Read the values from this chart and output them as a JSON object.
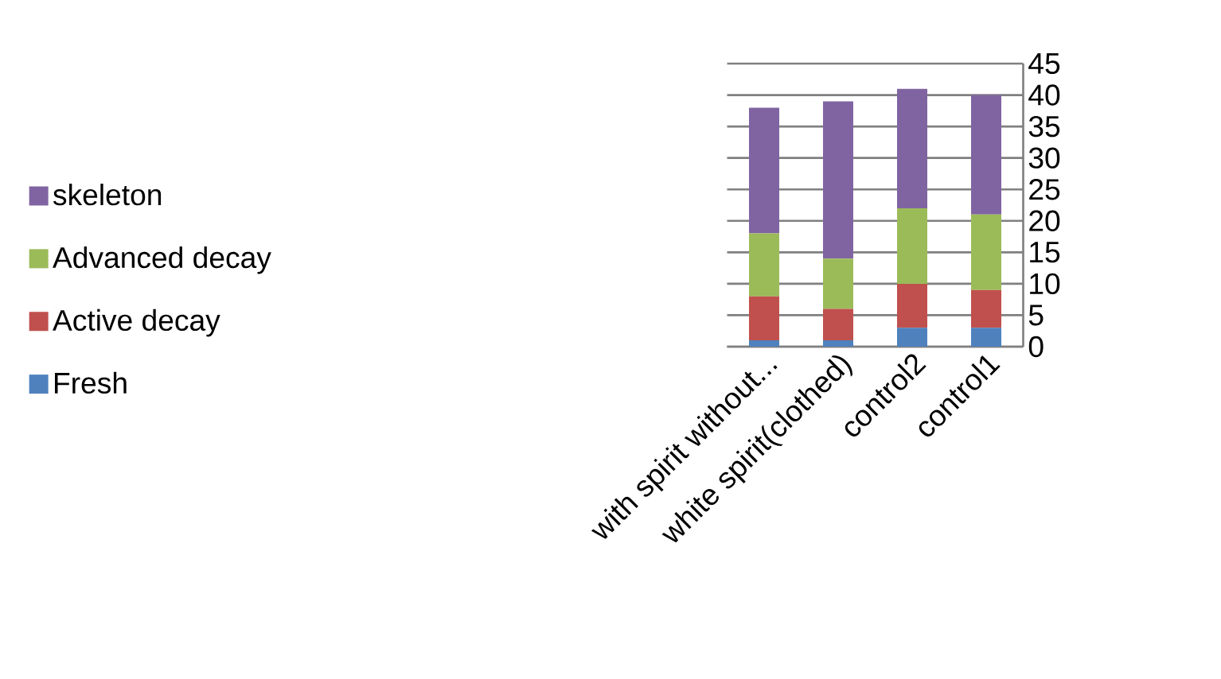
{
  "chart_data": {
    "type": "bar",
    "stacked": true,
    "categories": [
      "with spirit without...",
      "white spirit(clothed)",
      "control2",
      "control1"
    ],
    "series": [
      {
        "name": "Fresh",
        "color": "#4f81bd",
        "values": [
          1,
          1,
          3,
          3
        ]
      },
      {
        "name": "Active decay",
        "color": "#c0504d",
        "values": [
          7,
          5,
          7,
          6
        ]
      },
      {
        "name": "Advanced decay",
        "color": "#9bbb59",
        "values": [
          10,
          8,
          12,
          12
        ]
      },
      {
        "name": "skeleton",
        "color": "#8064a2",
        "values": [
          20,
          25,
          19,
          19
        ]
      }
    ],
    "ylim": [
      0,
      45
    ],
    "yticks": [
      0,
      5,
      10,
      15,
      20,
      25,
      30,
      35,
      40,
      45
    ],
    "grid": "y",
    "legend": "left"
  }
}
